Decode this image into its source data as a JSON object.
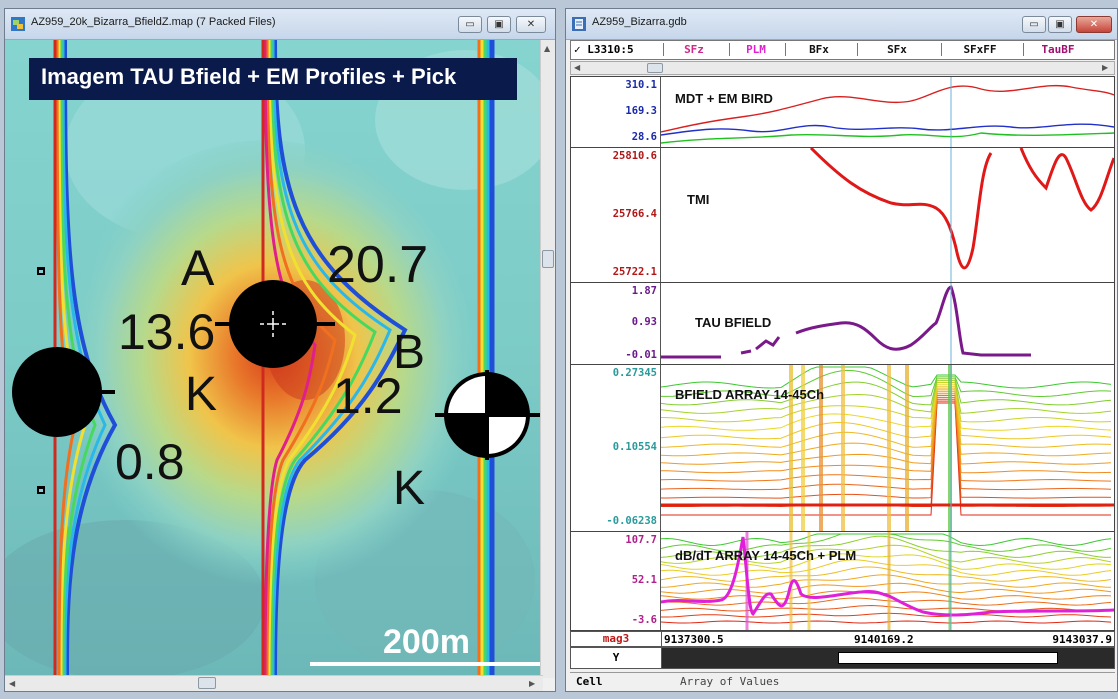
{
  "map_window": {
    "title": "AZ959_20k_Bizarra_BfieldZ.map (7 Packed Files)",
    "banner": "Imagem TAU Bfield + EM Profiles + Pick",
    "scale_label": "200m",
    "symbol_labels": {
      "a_letter": "A",
      "a_value": "20.7",
      "left_value": "13.6",
      "k_left": "K",
      "left_low": "0.8",
      "b_letter": "B",
      "b_value": "1.2",
      "k_right": "K"
    }
  },
  "gdb_window": {
    "title": "AZ959_Bizarra.gdb",
    "line_label": "✓ L3310:5",
    "columns": [
      {
        "label": "SFz",
        "color": "#cc2a8a"
      },
      {
        "label": "PLM",
        "color": "#e020d0"
      },
      {
        "label": "BFx",
        "color": "#111111"
      },
      {
        "label": "SFx",
        "color": "#111111"
      },
      {
        "label": "SFxFF",
        "color": "#111111"
      },
      {
        "label": "TauBF",
        "color": "#a01070"
      }
    ],
    "panels": {
      "mdt": {
        "title": "MDT + EM BIRD",
        "ticks": [
          "310.1",
          "169.3",
          "28.6"
        ],
        "tick_colors": [
          "#1a2aa8",
          "#1a2aa8",
          "#1a2aa8"
        ]
      },
      "tmi": {
        "title": "TMI",
        "ticks": [
          "25810.6",
          "25766.4",
          "25722.1"
        ],
        "tick_colors": [
          "#b01818",
          "#b01818",
          "#b01818"
        ]
      },
      "tau": {
        "title": "TAU BFIELD",
        "ticks": [
          "1.87",
          "0.93",
          "-0.01"
        ],
        "tick_colors": [
          "#6a1a8a",
          "#6a1a8a",
          "#6a1a8a"
        ]
      },
      "bfield": {
        "title": "BFIELD ARRAY 14-45Ch",
        "ticks": [
          "0.27345",
          "0.10554",
          "-0.06238"
        ],
        "tick_colors": [
          "#2a9a9a",
          "#2a9a9a",
          "#2a9a9a"
        ]
      },
      "dbdt": {
        "title": "dB/dT ARRAY 14-45Ch + PLM",
        "ticks": [
          "107.7",
          "52.1",
          "-3.6"
        ],
        "tick_colors": [
          "#b0208a",
          "#b0208a",
          "#b0208a"
        ]
      }
    },
    "footer": {
      "channel": "mag3",
      "x_ticks": [
        "9137300.5",
        "9140169.2",
        "9143037.9"
      ],
      "y_label": "Y"
    },
    "status": {
      "cell_label": "Cell",
      "value": "Array of Values"
    }
  }
}
